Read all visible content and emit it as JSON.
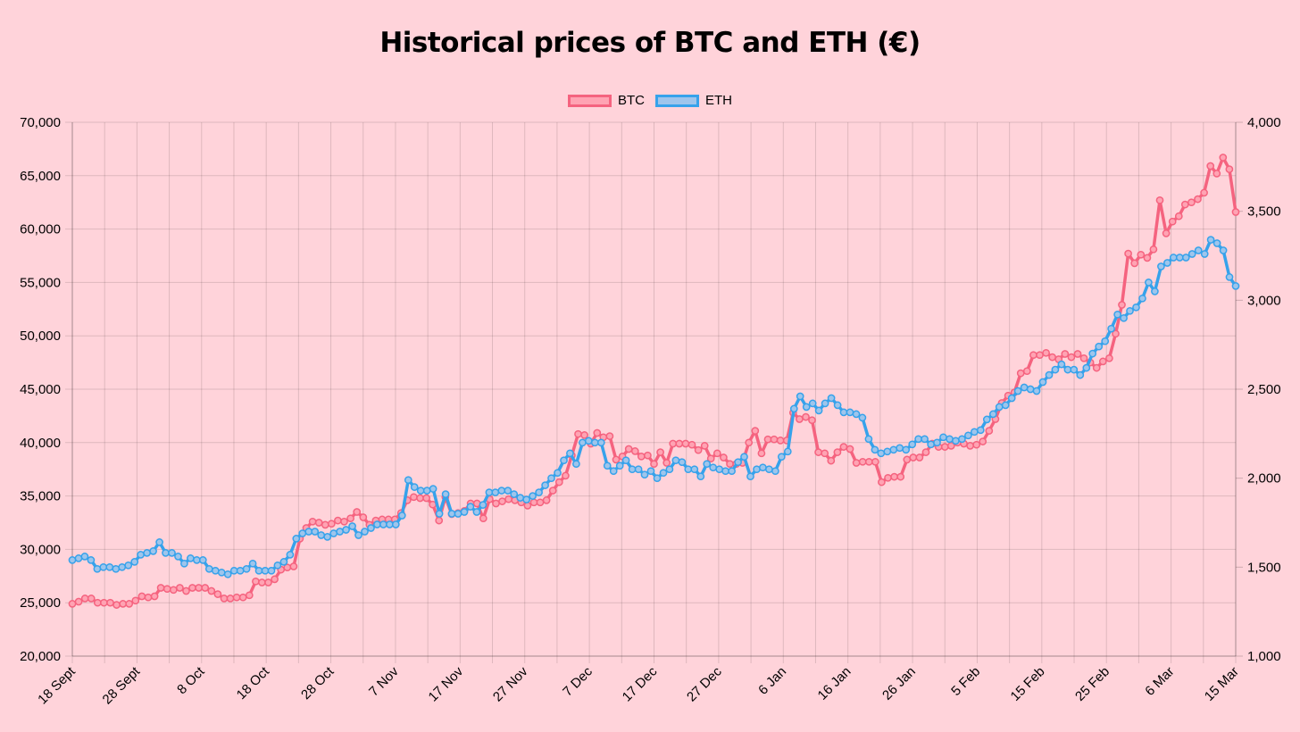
{
  "chart_data": {
    "type": "line",
    "title": "Historical prices of BTC and ETH (€)",
    "legend_position": "top-center",
    "grid": true,
    "x_tick_labels": [
      "18 Sept",
      "28 Sept",
      "8 Oct",
      "18 Oct",
      "28 Oct",
      "7 Nov",
      "17 Nov",
      "27 Nov",
      "7 Dec",
      "17 Dec",
      "27 Dec",
      "6 Jan",
      "16 Jan",
      "26 Jan",
      "5 Feb",
      "15 Feb",
      "25 Feb",
      "6 Mar",
      "15 Mar"
    ],
    "y_left": {
      "min": 20000,
      "max": 70000,
      "step": 5000,
      "tick_labels": [
        "20,000",
        "25,000",
        "30,000",
        "35,000",
        "40,000",
        "45,000",
        "50,000",
        "55,000",
        "60,000",
        "65,000",
        "70,000"
      ]
    },
    "y_right": {
      "min": 1000,
      "max": 4000,
      "step": 500,
      "tick_labels": [
        "1,000",
        "1,500",
        "2,000",
        "2,500",
        "3,000",
        "3,500",
        "4,000"
      ]
    },
    "series": [
      {
        "name": "BTC",
        "axis": "left",
        "color": "#f5637f",
        "fill": "#ffa3b3",
        "values": [
          24900,
          25100,
          25400,
          25400,
          25000,
          25000,
          25000,
          24800,
          24900,
          24900,
          25200,
          25600,
          25500,
          25600,
          26400,
          26300,
          26200,
          26400,
          26100,
          26400,
          26400,
          26400,
          26100,
          25800,
          25400,
          25400,
          25500,
          25500,
          25700,
          27000,
          26900,
          26900,
          27200,
          28100,
          28300,
          28400,
          31000,
          32000,
          32600,
          32500,
          32300,
          32400,
          32700,
          32600,
          32900,
          33500,
          33000,
          32300,
          32700,
          32800,
          32800,
          32800,
          33400,
          34600,
          34900,
          34800,
          34800,
          34200,
          32700,
          34900,
          33300,
          33400,
          33600,
          34300,
          34300,
          32900,
          34700,
          34300,
          34500,
          34700,
          34600,
          34400,
          34100,
          34400,
          34400,
          34600,
          35500,
          36300,
          36900,
          38800,
          40800,
          40700,
          39900,
          40900,
          40500,
          40600,
          38400,
          38700,
          39400,
          39200,
          38700,
          38800,
          38000,
          39100,
          38100,
          39900,
          39900,
          39900,
          39800,
          39300,
          39700,
          38500,
          39000,
          38600,
          38000,
          38000,
          38100,
          40000,
          41100,
          39000,
          40300,
          40300,
          40200,
          40200,
          42800,
          42200,
          42400,
          42100,
          39100,
          39000,
          38300,
          39100,
          39600,
          39400,
          38100,
          38200,
          38200,
          38200,
          36300,
          36700,
          36800,
          36800,
          38400,
          38600,
          38600,
          39100,
          39900,
          39600,
          39600,
          39700,
          40000,
          39900,
          39700,
          39800,
          40100,
          41100,
          42200,
          43700,
          44400,
          44700,
          46500,
          46700,
          48200,
          48200,
          48400,
          48000,
          47800,
          48300,
          48000,
          48300,
          47900,
          47500,
          47000,
          47600,
          47900,
          50200,
          52900,
          57700,
          56800,
          57600,
          57300,
          58100,
          62700,
          59600,
          60700,
          61200,
          62300,
          62500,
          62800,
          63400,
          65900,
          65200,
          66700,
          65600,
          61600
        ]
      },
      {
        "name": "ETH",
        "axis": "right",
        "color": "#36a2eb",
        "fill": "#9ec5ec",
        "values": [
          1540,
          1550,
          1560,
          1540,
          1490,
          1500,
          1500,
          1490,
          1500,
          1510,
          1530,
          1570,
          1580,
          1590,
          1640,
          1580,
          1580,
          1560,
          1520,
          1550,
          1540,
          1540,
          1490,
          1480,
          1470,
          1460,
          1480,
          1480,
          1490,
          1520,
          1480,
          1480,
          1480,
          1510,
          1530,
          1570,
          1660,
          1690,
          1700,
          1700,
          1680,
          1670,
          1690,
          1700,
          1710,
          1730,
          1680,
          1700,
          1720,
          1740,
          1740,
          1740,
          1740,
          1790,
          1990,
          1950,
          1930,
          1930,
          1940,
          1800,
          1910,
          1800,
          1800,
          1810,
          1840,
          1810,
          1850,
          1920,
          1920,
          1930,
          1930,
          1910,
          1890,
          1880,
          1900,
          1920,
          1960,
          2000,
          2030,
          2100,
          2140,
          2080,
          2200,
          2210,
          2200,
          2200,
          2070,
          2040,
          2070,
          2100,
          2050,
          2050,
          2020,
          2040,
          2000,
          2030,
          2050,
          2100,
          2090,
          2050,
          2050,
          2010,
          2080,
          2060,
          2050,
          2040,
          2040,
          2090,
          2120,
          2010,
          2050,
          2060,
          2050,
          2040,
          2120,
          2150,
          2390,
          2460,
          2400,
          2420,
          2380,
          2420,
          2450,
          2410,
          2370,
          2370,
          2360,
          2340,
          2220,
          2160,
          2140,
          2150,
          2160,
          2170,
          2160,
          2190,
          2220,
          2220,
          2190,
          2200,
          2230,
          2220,
          2210,
          2220,
          2240,
          2260,
          2270,
          2330,
          2360,
          2400,
          2410,
          2450,
          2490,
          2510,
          2500,
          2490,
          2540,
          2580,
          2610,
          2640,
          2610,
          2610,
          2580,
          2620,
          2700,
          2740,
          2770,
          2840,
          2920,
          2900,
          2940,
          2960,
          3010,
          3100,
          3050,
          3190,
          3210,
          3240,
          3240,
          3240,
          3260,
          3280,
          3260,
          3340,
          3320,
          3280,
          3130,
          3080
        ]
      }
    ]
  }
}
